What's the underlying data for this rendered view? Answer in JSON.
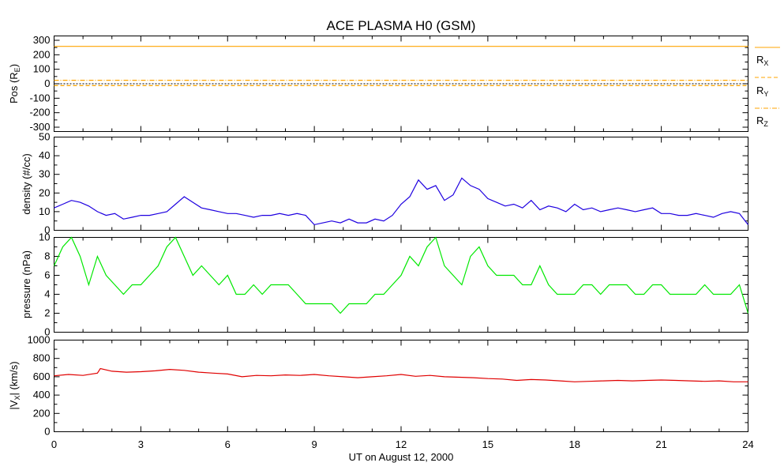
{
  "title": "ACE PLASMA H0 (GSM)",
  "xlabel": "UT on August 12, 2000",
  "x_ticks": [
    "0",
    "3",
    "6",
    "9",
    "12",
    "15",
    "18",
    "21",
    "24"
  ],
  "colors": {
    "Rx": "#ffa500",
    "Ry": "#ffa500",
    "Rz": "#ffa500",
    "density": "#1e00e0",
    "pressure": "#00e800",
    "vx": "#e00000"
  },
  "legend": {
    "Rx_base": "R",
    "Rx_sub": "X",
    "Ry_base": "R",
    "Ry_sub": "Y",
    "Rz_base": "R",
    "Rz_sub": "Z"
  },
  "panel_labels": {
    "pos": {
      "base": "Pos (R",
      "sub": "E",
      "end": ")"
    },
    "density": "density (#/cc)",
    "pressure": "pressure (nPa)",
    "vx": {
      "open": "|V",
      "sub": "X",
      "close": "| (km/s)"
    }
  },
  "chart_data": [
    {
      "type": "line",
      "panel": "position",
      "xlim": [
        0,
        24
      ],
      "ylim": [
        -330,
        330
      ],
      "y_ticks": [
        "300",
        "200",
        "100",
        "0",
        "-100",
        "-200",
        "-300"
      ],
      "series": [
        {
          "name": "RX",
          "style": "solid",
          "x": [
            0,
            24
          ],
          "y": [
            258,
            258
          ]
        },
        {
          "name": "RY",
          "style": "dash",
          "x": [
            0,
            24
          ],
          "y": [
            -13,
            -13
          ]
        },
        {
          "name": "RZ",
          "style": "dashdot",
          "x": [
            0,
            24
          ],
          "y": [
            24,
            24
          ]
        }
      ],
      "zero_line": true
    },
    {
      "type": "line",
      "panel": "density",
      "xlim": [
        0,
        24
      ],
      "ylim": [
        0,
        50
      ],
      "y_ticks": [
        "50",
        "40",
        "30",
        "20",
        "10",
        "0"
      ],
      "series": [
        {
          "name": "density",
          "x": [
            0,
            0.3,
            0.6,
            0.9,
            1.2,
            1.5,
            1.8,
            2.1,
            2.4,
            2.7,
            3.0,
            3.3,
            3.6,
            3.9,
            4.2,
            4.5,
            4.8,
            5.1,
            5.4,
            5.7,
            6.0,
            6.3,
            6.6,
            6.9,
            7.2,
            7.5,
            7.8,
            8.1,
            8.4,
            8.7,
            9.0,
            9.3,
            9.6,
            9.9,
            10.2,
            10.5,
            10.8,
            11.1,
            11.4,
            11.7,
            12.0,
            12.3,
            12.6,
            12.9,
            13.2,
            13.5,
            13.8,
            14.1,
            14.4,
            14.7,
            15.0,
            15.3,
            15.6,
            15.9,
            16.2,
            16.5,
            16.8,
            17.1,
            17.4,
            17.7,
            18.0,
            18.3,
            18.6,
            18.9,
            19.2,
            19.5,
            19.8,
            20.1,
            20.4,
            20.7,
            21.0,
            21.3,
            21.6,
            21.9,
            22.2,
            22.5,
            22.8,
            23.1,
            23.4,
            23.7,
            24.0
          ],
          "y": [
            12,
            14,
            16,
            15,
            13,
            10,
            8,
            9,
            6,
            7,
            8,
            8,
            9,
            10,
            14,
            18,
            15,
            12,
            11,
            10,
            9,
            9,
            8,
            7,
            8,
            8,
            9,
            8,
            9,
            8,
            3,
            4,
            5,
            4,
            6,
            4,
            4,
            6,
            5,
            8,
            14,
            18,
            27,
            22,
            24,
            16,
            19,
            28,
            24,
            22,
            17,
            15,
            13,
            14,
            12,
            16,
            11,
            13,
            12,
            10,
            14,
            11,
            12,
            10,
            11,
            12,
            11,
            10,
            11,
            12,
            9,
            9,
            8,
            8,
            9,
            8,
            7,
            9,
            10,
            9,
            3
          ]
        }
      ]
    },
    {
      "type": "line",
      "panel": "pressure",
      "xlim": [
        0,
        24
      ],
      "ylim": [
        0,
        10
      ],
      "y_ticks": [
        "10",
        "8",
        "6",
        "4",
        "2",
        "0"
      ],
      "series": [
        {
          "name": "pressure",
          "x": [
            0,
            0.3,
            0.6,
            0.9,
            1.2,
            1.5,
            1.8,
            2.1,
            2.4,
            2.7,
            3.0,
            3.3,
            3.6,
            3.9,
            4.2,
            4.5,
            4.8,
            5.1,
            5.4,
            5.7,
            6.0,
            6.3,
            6.6,
            6.9,
            7.2,
            7.5,
            7.8,
            8.1,
            8.4,
            8.7,
            9.0,
            9.3,
            9.6,
            9.9,
            10.2,
            10.5,
            10.8,
            11.1,
            11.4,
            11.7,
            12.0,
            12.3,
            12.6,
            12.9,
            13.2,
            13.5,
            13.8,
            14.1,
            14.4,
            14.7,
            15.0,
            15.3,
            15.6,
            15.9,
            16.2,
            16.5,
            16.8,
            17.1,
            17.4,
            17.7,
            18.0,
            18.3,
            18.6,
            18.9,
            19.2,
            19.5,
            19.8,
            20.1,
            20.4,
            20.7,
            21.0,
            21.3,
            21.6,
            21.9,
            22.2,
            22.5,
            22.8,
            23.1,
            23.4,
            23.7,
            24.0
          ],
          "y": [
            7,
            9,
            10,
            8,
            5,
            8,
            6,
            5,
            4,
            5,
            5,
            6,
            7,
            9,
            10,
            8,
            6,
            7,
            6,
            5,
            6,
            4,
            4,
            5,
            4,
            5,
            5,
            5,
            4,
            3,
            3,
            3,
            3,
            2,
            3,
            3,
            3,
            4,
            4,
            5,
            6,
            8,
            7,
            9,
            10,
            7,
            6,
            5,
            8,
            9,
            7,
            6,
            6,
            6,
            5,
            5,
            7,
            5,
            4,
            4,
            4,
            5,
            5,
            4,
            5,
            5,
            5,
            4,
            4,
            5,
            5,
            4,
            4,
            4,
            4,
            5,
            4,
            4,
            4,
            5,
            2
          ]
        }
      ]
    },
    {
      "type": "line",
      "panel": "vx",
      "xlim": [
        0,
        24
      ],
      "ylim": [
        0,
        1000
      ],
      "y_ticks": [
        "1000",
        "800",
        "600",
        "400",
        "200",
        "0"
      ],
      "series": [
        {
          "name": "|VX|",
          "x": [
            0,
            0.5,
            1.0,
            1.5,
            1.6,
            2.0,
            2.5,
            3.0,
            3.5,
            4.0,
            4.5,
            5.0,
            5.5,
            6.0,
            6.5,
            7.0,
            7.5,
            8.0,
            8.5,
            9.0,
            9.5,
            10.0,
            10.5,
            11.0,
            11.5,
            12.0,
            12.5,
            13.0,
            13.5,
            14.0,
            14.5,
            15.0,
            15.5,
            16.0,
            16.5,
            17.0,
            17.5,
            18.0,
            18.5,
            19.0,
            19.5,
            20.0,
            20.5,
            21.0,
            21.5,
            22.0,
            22.5,
            23.0,
            23.5,
            24.0
          ],
          "y": [
            610,
            625,
            615,
            640,
            690,
            660,
            650,
            655,
            665,
            680,
            670,
            650,
            640,
            630,
            600,
            615,
            610,
            620,
            615,
            625,
            610,
            600,
            590,
            600,
            610,
            625,
            605,
            615,
            600,
            595,
            590,
            580,
            575,
            560,
            570,
            565,
            555,
            545,
            550,
            555,
            560,
            555,
            560,
            565,
            560,
            555,
            550,
            555,
            545,
            545
          ]
        }
      ]
    }
  ]
}
